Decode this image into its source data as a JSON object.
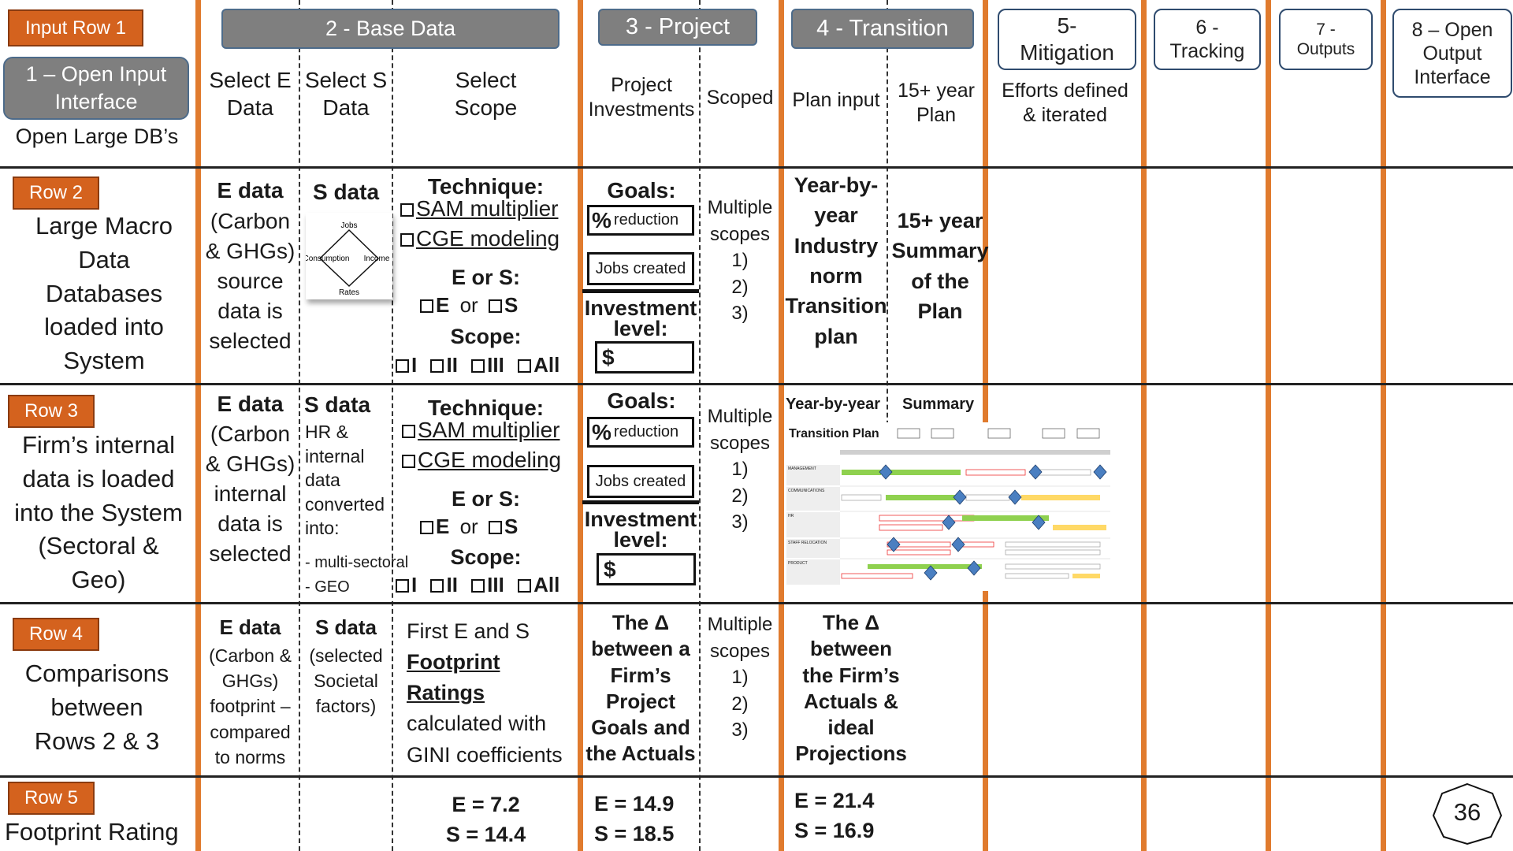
{
  "input_row": {
    "tag": "Input Row 1",
    "open_button": "1 – Open Input\nInterface",
    "text": "Open Large DB’s"
  },
  "header": {
    "base_data": "2 - Base Data",
    "project": "3 - Project",
    "transition": "4 - Transition",
    "mitigation": "5-\nMitigation",
    "tracking": "6 -\nTracking",
    "outputs": "7 -\nOutputs",
    "open_output": "8 – Open\nOutput\nInterface",
    "select_e": "Select E\nData",
    "select_s": "Select S\nData",
    "select_scope": "Select\nScope",
    "project_investments": "Project\nInvestments",
    "scoped": "Scoped",
    "plan_input": "Plan input",
    "plan15": "15+ year\nPlan",
    "efforts": "Efforts defined\n& iterated"
  },
  "row2": {
    "tag": "Row 2",
    "desc": "Large Macro\nData\nDatabases\nloaded into\nSystem",
    "e_title": "E data",
    "e_text": "(Carbon\n& GHGs)\nsource\ndata is\nselected",
    "s_title": "S data",
    "diagram": {
      "top": "Jobs",
      "left": "Consumption",
      "right": "Income",
      "bottom": "Rates"
    },
    "technique": "Technique:",
    "opt_sam": "SAM multiplier",
    "opt_cge": "CGE modeling",
    "e_or_s": "E or S:",
    "e": "E",
    "or": "or",
    "s": "S",
    "scope_label": "Scope:",
    "scope_opts": [
      "I",
      "II",
      "III",
      "All"
    ],
    "goals": "Goals:",
    "pct": "%",
    "reduction": "reduction",
    "jobs_created": "Jobs created",
    "investment": "Investment\nlevel:",
    "dollar": "$",
    "multiple": "Multiple\nscopes\n1)\n2)\n3)",
    "transition": "Year-by-\nyear\nIndustry\nnorm\nTransition\nplan",
    "summary": "15+ year\nSummary\nof the\nPlan"
  },
  "row3": {
    "tag": "Row 3",
    "desc": "Firm’s internal\ndata is loaded\ninto the System\n(Sectoral &\nGeo)",
    "e_title": "E data",
    "e_text": "(Carbon\n& GHGs)\ninternal\ndata is\nselected",
    "s_title": "S data",
    "s_text": "HR &\ninternal\ndata\nconverted\ninto:",
    "s_item1": "- multi-sectoral",
    "s_item2": "- GEO",
    "technique": "Technique:",
    "opt_sam": "SAM multiplier",
    "opt_cge": "CGE modeling",
    "e_or_s": "E or S:",
    "e": "E",
    "or": "or",
    "s": "S",
    "scope_label": "Scope:",
    "scope_opts": [
      "I",
      "II",
      "III",
      "All"
    ],
    "goals": "Goals:",
    "pct": "%",
    "reduction": "reduction",
    "jobs_created": "Jobs created",
    "investment": "Investment\nlevel:",
    "dollar": "$",
    "multiple": "Multiple\nscopes\n1)\n2)\n3)",
    "yby": "Year-by-year",
    "summary": "Summary",
    "transition_plan": "Transition Plan",
    "gantt_rows": [
      "MANAGEMENT",
      "COMMUNICATIONS",
      "HR",
      "STAFF RELOCATION",
      "PRODUCT"
    ]
  },
  "row4": {
    "tag": "Row 4",
    "desc": "Comparisons\nbetween\nRows 2 & 3",
    "e_title": "E data",
    "e_text": "(Carbon &\nGHGs)\nfootprint –\ncompared\nto norms",
    "s_title": "S data",
    "s_text": "(selected\nSocietal\nfactors)",
    "scope_l1": "First E and S",
    "scope_l2": "Footprint",
    "scope_l3": "Ratings",
    "scope_l4": "calculated with",
    "scope_l5": "GINI coefficients",
    "project": "The  Δ\nbetween a\nFirm’s\nProject\nGoals and\nthe Actuals",
    "multiple": "Multiple\nscopes\n1)\n2)\n3)",
    "transition": "The  Δ\nbetween\nthe Firm’s\nActuals &\nideal\nProjections"
  },
  "row5": {
    "tag": "Row 5",
    "desc": "Footprint Rating",
    "scope_e": "E = 7.2",
    "scope_s": "S = 14.4",
    "project_e": "E = 14.9",
    "project_s": "S = 18.5",
    "transition_e": "E = 21.4",
    "transition_s": "S = 16.9"
  },
  "page_number": "36",
  "colors": {
    "orange": "#e07b2e",
    "tag": "#d4621e",
    "grey_button": "#7f7f7f",
    "button_border": "#2f4b6e"
  }
}
